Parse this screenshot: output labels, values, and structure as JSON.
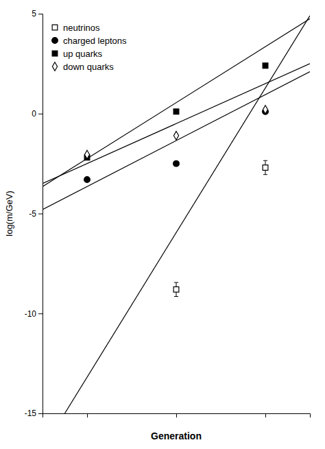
{
  "chart_data": {
    "type": "scatter",
    "xlabel": "Generation",
    "ylabel": "log(m/GeV)",
    "xlim": [
      0.5,
      3.5
    ],
    "ylim": [
      -15,
      5
    ],
    "xticks": [
      1,
      2,
      3
    ],
    "yticks": [
      -15,
      -10,
      -5,
      0,
      5
    ],
    "tick_labels": "y",
    "grid": false,
    "legend": "upper left",
    "series": [
      {
        "name": "neutrinos",
        "type": "scatter",
        "marker": "square-open",
        "color": "black",
        "x": [
          2,
          3
        ],
        "values": [
          -8.8,
          -2.7
        ],
        "yerr": [
          0.35,
          0.35
        ]
      },
      {
        "name": "charged leptons",
        "type": "scatter",
        "marker": "circle",
        "color": "black",
        "x": [
          1,
          2,
          3
        ],
        "values": [
          -3.3,
          -2.5,
          0.1
        ]
      },
      {
        "name": "up quarks",
        "type": "scatter",
        "marker": "square",
        "color": "black",
        "x": [
          1,
          2,
          3
        ],
        "values": [
          -2.2,
          0.1,
          2.4
        ]
      },
      {
        "name": "down quarks",
        "type": "scatter",
        "marker": "diamond-open",
        "color": "black",
        "x": [
          1,
          2,
          3
        ],
        "values": [
          -2.05,
          -1.1,
          0.2
        ]
      },
      {
        "type": "line",
        "color": "black",
        "x": [
          0.5,
          3.5
        ],
        "values": [
          -3.65,
          4.75
        ]
      },
      {
        "type": "line",
        "color": "black",
        "x": [
          0.5,
          3.5
        ],
        "values": [
          -3.5,
          2.5
        ]
      },
      {
        "type": "line",
        "color": "black",
        "x": [
          0.5,
          3.5
        ],
        "values": [
          -4.8,
          2.1
        ]
      },
      {
        "type": "line",
        "color": "black",
        "x": [
          0.75,
          3.5
        ],
        "values": [
          -15.0,
          4.9
        ]
      }
    ]
  }
}
